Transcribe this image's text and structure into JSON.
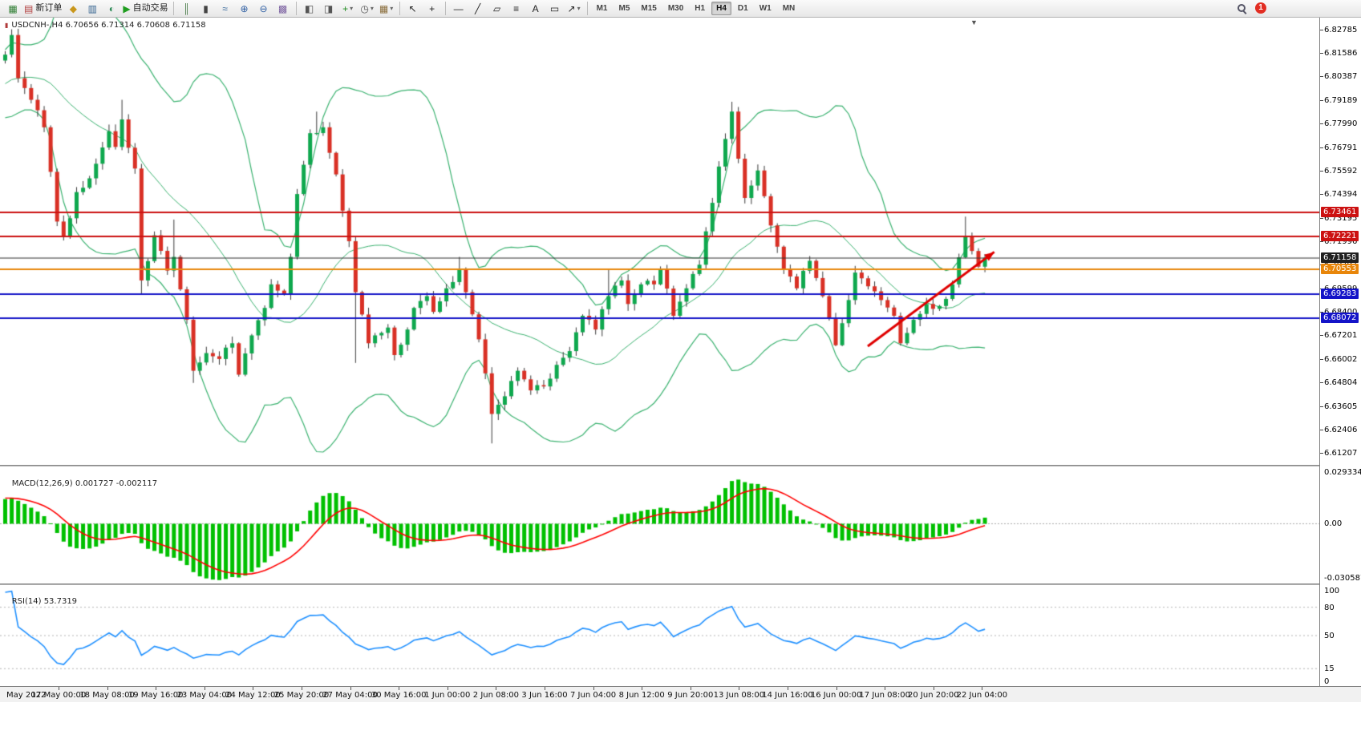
{
  "colors": {
    "bull": "#0fa84e",
    "bear": "#d93025",
    "wick": "#3a3a3a",
    "bollinger": "#3cb371",
    "macd_hist": "#00c000",
    "macd_signal": "#ff0000",
    "rsi_line": "#1e90ff"
  },
  "toolbar": {
    "items": [
      {
        "t": "btn",
        "name": "new-chart-button",
        "g": "▦",
        "c": "#2e7d32"
      },
      {
        "t": "btn",
        "name": "new-order-button",
        "g": "▤",
        "c": "#b03a3a",
        "label": "新订单"
      },
      {
        "t": "btn",
        "name": "market-watch-button",
        "g": "◆",
        "c": "#c9971c"
      },
      {
        "t": "btn",
        "name": "data-window-button",
        "g": "▥",
        "c": "#33628f"
      },
      {
        "t": "btn",
        "name": "navigator-button",
        "g": "◐",
        "c": "#2e8b57"
      },
      {
        "t": "btn",
        "name": "autotrading-button",
        "g": "▶",
        "c": "#1f9d1f",
        "label": "自动交易"
      },
      {
        "t": "sep"
      },
      {
        "t": "btn",
        "name": "bars-chart-button",
        "g": "║",
        "c": "#4a7d4a"
      },
      {
        "t": "btn",
        "name": "candlestick-chart-button",
        "g": "▮",
        "c": "#444444"
      },
      {
        "t": "btn",
        "name": "line-chart-button",
        "g": "≈",
        "c": "#336699"
      },
      {
        "t": "btn",
        "name": "zoom-in-button",
        "g": "⊕",
        "c": "#2f5fa3"
      },
      {
        "t": "btn",
        "name": "zoom-out-button",
        "g": "⊖",
        "c": "#2f5fa3"
      },
      {
        "t": "btn",
        "name": "tile-windows-button",
        "g": "▩",
        "c": "#7a5fa0"
      },
      {
        "t": "sep"
      },
      {
        "t": "btn",
        "name": "chart-shift-button",
        "g": "◧",
        "c": "#555555"
      },
      {
        "t": "btn",
        "name": "chart-autoscroll-button",
        "g": "◨",
        "c": "#555555"
      },
      {
        "t": "btn",
        "name": "indicators-button",
        "g": "+",
        "c": "#1c8a1c",
        "caret": true
      },
      {
        "t": "btn",
        "name": "periods-button",
        "g": "◷",
        "c": "#555555",
        "caret": true
      },
      {
        "t": "btn",
        "name": "templates-button",
        "g": "▦",
        "c": "#8a6d3b",
        "caret": true
      },
      {
        "t": "sep"
      },
      {
        "t": "btn",
        "name": "cursor-button",
        "g": "↖",
        "c": "#222222"
      },
      {
        "t": "btn",
        "name": "crosshair-button",
        "g": "+",
        "c": "#222222"
      },
      {
        "t": "sep"
      },
      {
        "t": "btn",
        "name": "horizontal-line-button",
        "g": "―",
        "c": "#222222"
      },
      {
        "t": "btn",
        "name": "trendline-button",
        "g": "╱",
        "c": "#222222"
      },
      {
        "t": "btn",
        "name": "channel-button",
        "g": "▱",
        "c": "#222222"
      },
      {
        "t": "btn",
        "name": "fibonacci-button",
        "g": "≡",
        "c": "#222222"
      },
      {
        "t": "btn",
        "name": "text-button",
        "g": "A",
        "c": "#222222"
      },
      {
        "t": "btn",
        "name": "label-button",
        "g": "▭",
        "c": "#222222"
      },
      {
        "t": "btn",
        "name": "arrows-button",
        "g": "↗",
        "c": "#222222",
        "caret": true
      },
      {
        "t": "sep"
      }
    ],
    "timeframes": [
      "M1",
      "M5",
      "M15",
      "M30",
      "H1",
      "H4",
      "D1",
      "W1",
      "MN"
    ],
    "active_timeframe": "H4",
    "notification_count": "1"
  },
  "chart": {
    "symbol": "USDCNH-",
    "timeframe": "H4",
    "title_line": "USDCNH-,H4 6.70656 6.71314 6.70608 6.71158",
    "ohlc": {
      "open": "6.70656",
      "high": "6.71314",
      "low": "6.70608",
      "close": "6.71158"
    },
    "price_axis_ticks": [
      "6.82785",
      "6.81586",
      "6.80387",
      "6.79189",
      "6.77990",
      "6.76791",
      "6.75592",
      "6.74394",
      "6.73195",
      "6.71996",
      "6.70797",
      "6.69599",
      "6.68400",
      "6.67201",
      "6.66002",
      "6.64804",
      "6.63605",
      "6.62406",
      "6.61207"
    ],
    "price_range": {
      "max": 6.83385,
      "min": 6.60607
    },
    "price_tags": [
      {
        "value": "6.73461",
        "bg": "#cc1111"
      },
      {
        "value": "6.72221",
        "bg": "#cc1111"
      },
      {
        "value": "6.71158",
        "bg": "#202020"
      },
      {
        "value": "6.70553",
        "bg": "#e8860a"
      },
      {
        "value": "6.69283",
        "bg": "#1414c8"
      },
      {
        "value": "6.68072",
        "bg": "#1414c8"
      }
    ],
    "hlines": [
      {
        "price": 6.73461,
        "color": "#cc1111",
        "w": 2
      },
      {
        "price": 6.72221,
        "color": "#cc1111",
        "w": 2
      },
      {
        "price": 6.71158,
        "color": "#303030",
        "w": 1
      },
      {
        "price": 6.70553,
        "color": "#e8860a",
        "w": 2
      },
      {
        "price": 6.69283,
        "color": "#1414c8",
        "w": 2
      },
      {
        "price": 6.68072,
        "color": "#1414c8",
        "w": 2
      }
    ],
    "trend_arrow": {
      "from": {
        "i": 133,
        "price": 6.6665
      },
      "to": {
        "i": 152.5,
        "price": 6.7145
      },
      "color": "#e00000"
    }
  },
  "macd": {
    "name": "MACD(12,26,9)",
    "main_value": "0.001727",
    "signal_value": "-0.002117",
    "axis": [
      "0.029334",
      "0.00",
      "-0.030587"
    ],
    "range": {
      "max": 0.029334,
      "min": -0.030587
    }
  },
  "rsi": {
    "name": "RSI(14)",
    "value": "53.7319",
    "axis": [
      "100",
      "80",
      "50",
      "15",
      "0"
    ],
    "levels": [
      80,
      50,
      15
    ],
    "range": {
      "max": 100,
      "min": 0
    }
  },
  "time_axis": [
    "May 2022",
    "17 May 00:00",
    "18 May 08:00",
    "19 May 16:00",
    "23 May 04:00",
    "24 May 12:00",
    "25 May 20:00",
    "27 May 04:00",
    "30 May 16:00",
    "1 Jun 00:00",
    "2 Jun 08:00",
    "3 Jun 16:00",
    "7 Jun 04:00",
    "8 Jun 12:00",
    "9 Jun 20:00",
    "13 Jun 08:00",
    "14 Jun 16:00",
    "16 Jun 00:00",
    "17 Jun 08:00",
    "20 Jun 20:00",
    "22 Jun 04:00"
  ],
  "chart_data": {
    "type": "candlestick",
    "symbol": "USDCNH",
    "timeframe": "H4",
    "visible_candles": 152,
    "warmup_candles": 40,
    "price_path": [
      [
        -40,
        6.722
      ],
      [
        -32,
        6.752
      ],
      [
        -24,
        6.772
      ],
      [
        -16,
        6.792
      ],
      [
        -8,
        6.802
      ],
      [
        -1,
        6.812
      ],
      [
        0,
        6.815
      ],
      [
        1,
        6.825
      ],
      [
        2,
        6.803
      ],
      [
        4,
        6.792
      ],
      [
        6,
        6.778
      ],
      [
        8,
        6.73
      ],
      [
        9,
        6.722
      ],
      [
        11,
        6.745
      ],
      [
        13,
        6.752
      ],
      [
        16,
        6.776
      ],
      [
        17,
        6.768
      ],
      [
        18,
        6.782
      ],
      [
        20,
        6.757
      ],
      [
        21,
        6.7
      ],
      [
        23,
        6.723
      ],
      [
        25,
        6.705
      ],
      [
        26,
        6.712
      ],
      [
        28,
        6.68
      ],
      [
        29,
        6.654
      ],
      [
        31,
        6.663
      ],
      [
        33,
        6.66
      ],
      [
        35,
        6.668
      ],
      [
        36,
        6.652
      ],
      [
        38,
        6.672
      ],
      [
        40,
        6.686
      ],
      [
        41,
        6.698
      ],
      [
        43,
        6.693
      ],
      [
        44,
        6.712
      ],
      [
        45,
        6.744
      ],
      [
        47,
        6.775
      ],
      [
        49,
        6.778
      ],
      [
        50,
        6.765
      ],
      [
        51,
        6.754
      ],
      [
        53,
        6.72
      ],
      [
        54,
        6.694
      ],
      [
        56,
        6.668
      ],
      [
        57,
        6.672
      ],
      [
        59,
        6.676
      ],
      [
        60,
        6.662
      ],
      [
        62,
        6.675
      ],
      [
        63,
        6.686
      ],
      [
        65,
        6.692
      ],
      [
        66,
        6.684
      ],
      [
        68,
        6.696
      ],
      [
        70,
        6.706
      ],
      [
        71,
        6.694
      ],
      [
        73,
        6.67
      ],
      [
        75,
        6.632
      ],
      [
        77,
        6.641
      ],
      [
        79,
        6.654
      ],
      [
        81,
        6.644
      ],
      [
        83,
        6.646
      ],
      [
        85,
        6.657
      ],
      [
        87,
        6.664
      ],
      [
        89,
        6.682
      ],
      [
        91,
        6.675
      ],
      [
        93,
        6.692
      ],
      [
        95,
        6.7
      ],
      [
        96,
        6.688
      ],
      [
        98,
        6.698
      ],
      [
        100,
        6.698
      ],
      [
        101,
        6.706
      ],
      [
        103,
        6.682
      ],
      [
        105,
        6.696
      ],
      [
        107,
        6.708
      ],
      [
        108,
        6.725
      ],
      [
        110,
        6.758
      ],
      [
        112,
        6.786
      ],
      [
        113,
        6.762
      ],
      [
        114,
        6.742
      ],
      [
        116,
        6.756
      ],
      [
        118,
        6.728
      ],
      [
        120,
        6.706
      ],
      [
        122,
        6.696
      ],
      [
        124,
        6.71
      ],
      [
        126,
        6.692
      ],
      [
        128,
        6.667
      ],
      [
        130,
        6.69
      ],
      [
        131,
        6.704
      ],
      [
        133,
        6.697
      ],
      [
        135,
        6.69
      ],
      [
        137,
        6.682
      ],
      [
        138,
        6.668
      ],
      [
        140,
        6.68
      ],
      [
        142,
        6.688
      ],
      [
        144,
        6.687
      ],
      [
        146,
        6.698
      ],
      [
        148,
        6.722
      ],
      [
        149,
        6.715
      ],
      [
        150,
        6.707
      ],
      [
        151,
        6.71158
      ]
    ],
    "wick_overrides": [
      [
        1,
        "h",
        6.8279
      ],
      [
        18,
        "h",
        6.792
      ],
      [
        21,
        "l",
        6.693
      ],
      [
        26,
        "h",
        6.731
      ],
      [
        29,
        "l",
        6.6478
      ],
      [
        48,
        "h",
        6.786
      ],
      [
        54,
        "l",
        6.658
      ],
      [
        70,
        "h",
        6.712
      ],
      [
        75,
        "l",
        6.617
      ],
      [
        93,
        "h",
        6.706
      ],
      [
        112,
        "h",
        6.791
      ],
      [
        148,
        "h",
        6.7325
      ]
    ],
    "indicators": [
      {
        "type": "bollinger_bands",
        "period": 20,
        "deviation": 2
      },
      {
        "type": "macd",
        "fast": 12,
        "slow": 26,
        "signal": 9,
        "current_main": 0.001727,
        "current_signal": -0.002117
      },
      {
        "type": "rsi",
        "period": 14,
        "current": 53.7319
      }
    ],
    "key_levels": [
      6.73461,
      6.72221,
      6.71158,
      6.70553,
      6.69283,
      6.68072
    ]
  }
}
